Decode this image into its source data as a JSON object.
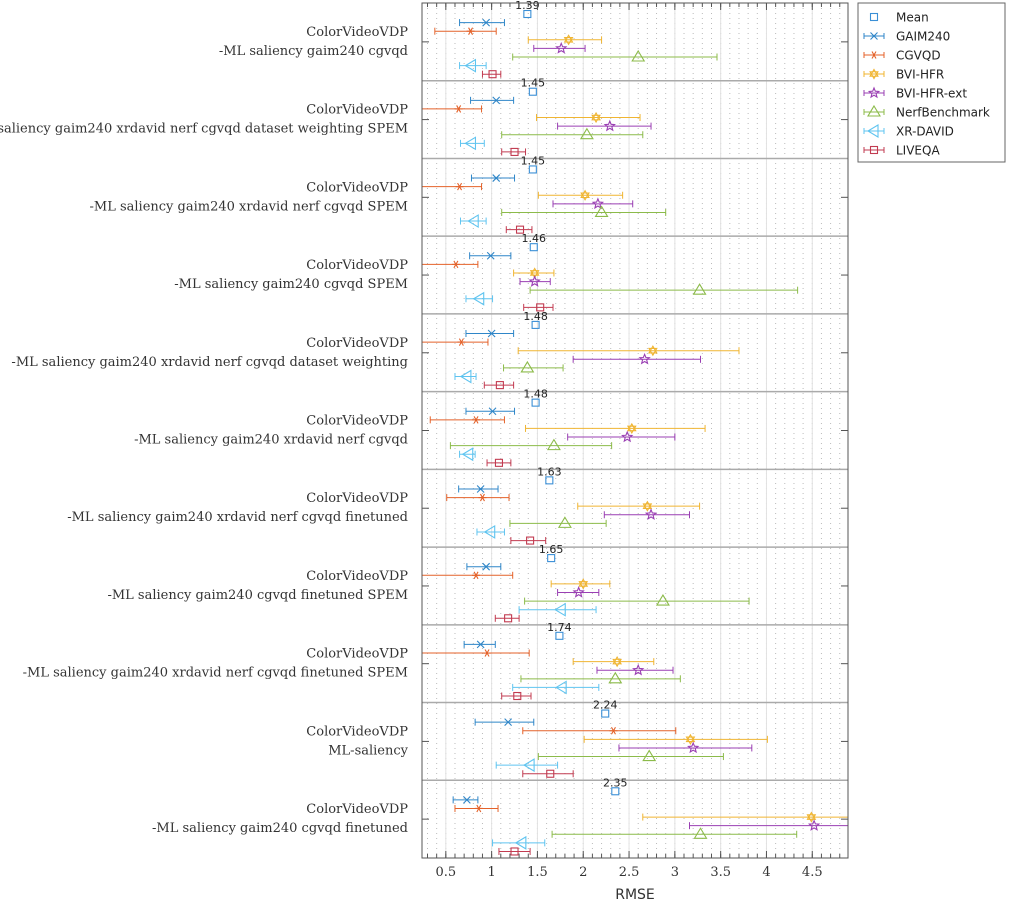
{
  "chart_data": {
    "type": "scatter",
    "subtype": "horizontal-error-bars",
    "xlabel": "RMSE",
    "ylabel": "",
    "title": "",
    "xlim": [
      0.24,
      4.89
    ],
    "xticks": [
      0.5,
      1,
      1.5,
      2,
      2.5,
      3,
      3.5,
      4,
      4.5
    ],
    "xtick_labels": [
      "0.5",
      "1",
      "1.5",
      "2",
      "2.5",
      "3",
      "3.5",
      "4",
      "4.5"
    ],
    "grid": true,
    "legend_position": "outside-top-right",
    "categories": [
      {
        "line1": "ColorVideoVDP",
        "line2": "-ML saliency gaim240 cgvqd"
      },
      {
        "line1": "ColorVideoVDP",
        "line2": "-ML saliency gaim240 xrdavid nerf cgvqd dataset weighting SPEM"
      },
      {
        "line1": "ColorVideoVDP",
        "line2": "-ML saliency gaim240 xrdavid nerf cgvqd SPEM"
      },
      {
        "line1": "ColorVideoVDP",
        "line2": "-ML saliency gaim240 cgvqd SPEM"
      },
      {
        "line1": "ColorVideoVDP",
        "line2": "-ML saliency gaim240 xrdavid nerf cgvqd dataset weighting"
      },
      {
        "line1": "ColorVideoVDP",
        "line2": "-ML saliency gaim240 xrdavid nerf cgvqd"
      },
      {
        "line1": "ColorVideoVDP",
        "line2": "-ML saliency gaim240 xrdavid nerf cgvqd finetuned"
      },
      {
        "line1": "ColorVideoVDP",
        "line2": "-ML saliency gaim240 cgvqd finetuned SPEM"
      },
      {
        "line1": "ColorVideoVDP",
        "line2": "-ML saliency gaim240 xrdavid nerf cgvqd finetuned SPEM"
      },
      {
        "line1": "ColorVideoVDP",
        "line2": "ML-saliency"
      },
      {
        "line1": "ColorVideoVDP",
        "line2": "-ML saliency gaim240 cgvqd finetuned"
      }
    ],
    "mean": {
      "name": "Mean",
      "marker": "square",
      "color": "#3a8fd6",
      "values": [
        1.39,
        1.45,
        1.45,
        1.46,
        1.48,
        1.48,
        1.63,
        1.65,
        1.74,
        2.24,
        2.35
      ],
      "labels": [
        "1.39",
        "1.45",
        "1.45",
        "1.46",
        "1.48",
        "1.48",
        "1.63",
        "1.65",
        "1.74",
        "2.24",
        "2.35"
      ]
    },
    "series": [
      {
        "name": "GAIM240",
        "marker": "x",
        "color": "#2f86c8",
        "values": [
          0.94,
          1.05,
          1.05,
          0.99,
          1.0,
          1.01,
          0.88,
          0.94,
          0.88,
          1.18,
          0.73
        ],
        "lower": [
          0.65,
          0.77,
          0.78,
          0.76,
          0.72,
          0.72,
          0.64,
          0.73,
          0.7,
          0.82,
          0.58
        ],
        "upper": [
          1.14,
          1.24,
          1.25,
          1.21,
          1.24,
          1.25,
          1.07,
          1.1,
          1.04,
          1.46,
          0.85
        ]
      },
      {
        "name": "CGVQD",
        "marker": "asterisk",
        "color": "#e4622a",
        "values": [
          0.77,
          0.64,
          0.65,
          0.61,
          0.67,
          0.83,
          0.9,
          0.83,
          0.95,
          2.33,
          0.86
        ],
        "lower": [
          0.38,
          0.1,
          0.1,
          0.1,
          0.1,
          0.33,
          0.51,
          0.1,
          0.1,
          1.34,
          0.6
        ],
        "upper": [
          1.05,
          0.89,
          0.89,
          0.85,
          0.96,
          1.14,
          1.19,
          1.23,
          1.41,
          3.01,
          1.07
        ]
      },
      {
        "name": "BVI-HFR",
        "marker": "hexagram",
        "color": "#f0b532",
        "values": [
          1.84,
          2.14,
          2.02,
          1.47,
          2.76,
          2.53,
          2.7,
          2.0,
          2.37,
          3.17,
          4.49
        ],
        "lower": [
          1.4,
          1.49,
          1.51,
          1.24,
          1.29,
          1.37,
          1.94,
          1.65,
          1.89,
          2.01,
          2.65
        ],
        "upper": [
          2.2,
          2.62,
          2.43,
          1.68,
          3.7,
          3.33,
          3.27,
          2.29,
          2.77,
          4.01,
          5.3
        ]
      },
      {
        "name": "BVI-HFR-ext",
        "marker": "star",
        "color": "#9a3fb3",
        "values": [
          1.76,
          2.29,
          2.16,
          1.47,
          2.67,
          2.48,
          2.74,
          1.95,
          2.6,
          3.2,
          4.52
        ],
        "lower": [
          1.46,
          1.72,
          1.67,
          1.31,
          1.89,
          1.83,
          2.23,
          1.72,
          2.15,
          2.39,
          3.16
        ],
        "upper": [
          2.02,
          2.74,
          2.54,
          1.64,
          3.28,
          3.0,
          3.16,
          2.17,
          2.98,
          3.84,
          5.3
        ]
      },
      {
        "name": "NerfBenchmark",
        "marker": "triangle-up",
        "color": "#8cbb4a",
        "values": [
          2.6,
          2.04,
          2.2,
          3.27,
          1.39,
          1.68,
          1.8,
          2.87,
          2.35,
          2.72,
          3.28
        ],
        "lower": [
          1.23,
          1.11,
          1.11,
          1.42,
          1.13,
          0.55,
          1.2,
          1.36,
          1.32,
          1.51,
          1.66
        ],
        "upper": [
          3.46,
          2.65,
          2.9,
          4.34,
          1.78,
          2.31,
          2.25,
          3.81,
          3.06,
          3.53,
          4.33
        ]
      },
      {
        "name": "XR-DAVID",
        "marker": "triangle-left",
        "color": "#5fc4f0",
        "values": [
          0.78,
          0.78,
          0.81,
          0.87,
          0.73,
          0.75,
          0.99,
          1.76,
          1.77,
          1.42,
          1.33
        ],
        "lower": [
          0.65,
          0.66,
          0.66,
          0.72,
          0.6,
          0.65,
          0.84,
          1.3,
          1.23,
          1.05,
          1.01
        ],
        "upper": [
          0.94,
          0.92,
          0.94,
          1.01,
          0.83,
          0.82,
          1.14,
          2.14,
          2.17,
          1.72,
          1.58
        ]
      },
      {
        "name": "LIVEQA",
        "marker": "square",
        "color": "#c23b50",
        "values": [
          1.01,
          1.25,
          1.31,
          1.53,
          1.09,
          1.08,
          1.42,
          1.18,
          1.28,
          1.64,
          1.25
        ],
        "lower": [
          0.9,
          1.11,
          1.16,
          1.35,
          0.92,
          0.95,
          1.21,
          1.04,
          1.11,
          1.34,
          1.08
        ],
        "upper": [
          1.1,
          1.37,
          1.44,
          1.67,
          1.24,
          1.21,
          1.59,
          1.3,
          1.43,
          1.89,
          1.42
        ]
      }
    ]
  }
}
